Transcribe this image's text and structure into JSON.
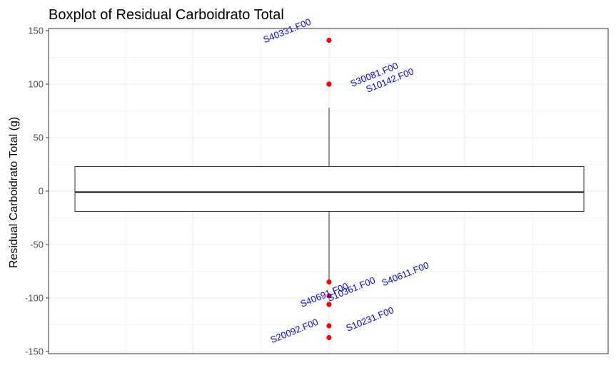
{
  "chart_data": {
    "type": "boxplot",
    "title": "Boxplot of Residual Carboidrato Total",
    "ylabel": "Residual Carboidrato Total (g)",
    "xlabel": "",
    "ylim": [
      -152,
      152
    ],
    "yticks": [
      -150,
      -100,
      -50,
      0,
      50,
      100,
      150
    ],
    "grid": true,
    "box": {
      "q1": -19,
      "median": -1,
      "q3": 23,
      "whisker_low": -83,
      "whisker_high": 78
    },
    "outliers": [
      {
        "y": 141,
        "label": "S40331.F00"
      },
      {
        "y": 100,
        "label": "S30081.F00"
      },
      {
        "y": 100,
        "label": "S10142.F00"
      },
      {
        "y": -85,
        "label": "S40611.F00"
      },
      {
        "y": -98,
        "label": "S10361.F00"
      },
      {
        "y": -106,
        "label": "S40691.F00"
      },
      {
        "y": -126,
        "label": "S10231.F00"
      },
      {
        "y": -137,
        "label": "S20092.F00"
      }
    ],
    "colors": {
      "outlier": "#ff0000",
      "label": "#0000ff",
      "grid": "#ebebeb",
      "axis": "#333333"
    }
  }
}
